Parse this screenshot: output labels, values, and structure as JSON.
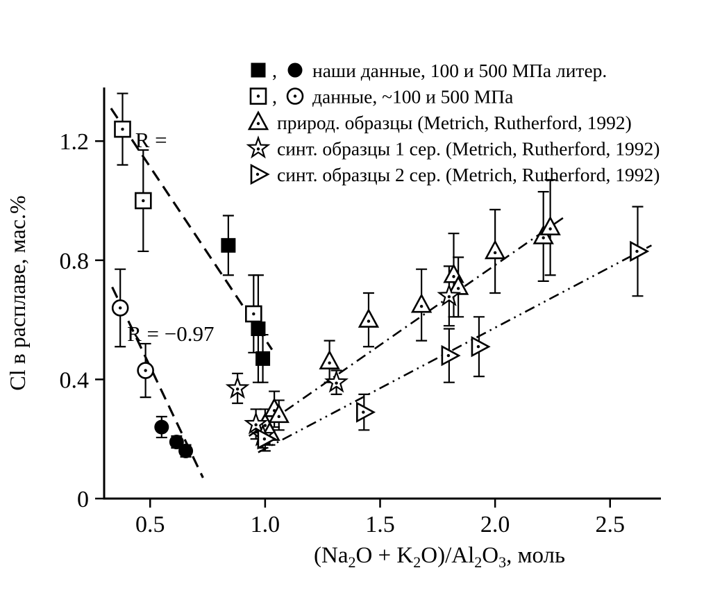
{
  "figure": {
    "background": "#ffffff",
    "ink_color": "#000000"
  },
  "chart_data": {
    "type": "scatter",
    "title": "",
    "xlabel_text": "(Na2O + K2O)/Al2O3, моль",
    "xlabel_parts": [
      {
        "text": "(Na"
      },
      {
        "text": "2",
        "sub": true
      },
      {
        "text": "O + K"
      },
      {
        "text": "2",
        "sub": true
      },
      {
        "text": "O)/Al"
      },
      {
        "text": "2",
        "sub": true
      },
      {
        "text": "O"
      },
      {
        "text": "3",
        "sub": true
      },
      {
        "text": ", моль"
      }
    ],
    "ylabel": "Cl в расплаве, мас.%",
    "xlim": [
      0.3,
      2.7
    ],
    "ylim": [
      0,
      1.38
    ],
    "grid": false,
    "x_ticks": [
      {
        "v": 0.5,
        "label": "0.5"
      },
      {
        "v": 1.0,
        "label": "1.0"
      },
      {
        "v": 1.5,
        "label": "1.5"
      },
      {
        "v": 2.0,
        "label": "2.0"
      },
      {
        "v": 2.5,
        "label": "2.5"
      }
    ],
    "y_ticks": [
      {
        "v": 0,
        "label": "0"
      },
      {
        "v": 0.4,
        "label": "0.4"
      },
      {
        "v": 0.8,
        "label": "0.8"
      },
      {
        "v": 1.2,
        "label": "1.2"
      }
    ],
    "series": [
      {
        "marker": "open_square",
        "points": [
          {
            "x": 0.38,
            "y": 1.24,
            "e": 0.12
          },
          {
            "x": 0.47,
            "y": 1.0,
            "e": 0.17
          },
          {
            "x": 0.95,
            "y": 0.62,
            "e": 0.13
          }
        ]
      },
      {
        "marker": "open_circle",
        "points": [
          {
            "x": 0.37,
            "y": 0.64,
            "e": 0.13
          },
          {
            "x": 0.48,
            "y": 0.43,
            "e": 0.09
          }
        ]
      },
      {
        "marker": "filled_square",
        "points": [
          {
            "x": 0.84,
            "y": 0.85,
            "e": 0.1
          },
          {
            "x": 0.97,
            "y": 0.57,
            "e": 0.18
          },
          {
            "x": 0.99,
            "y": 0.47,
            "e": 0.08
          }
        ]
      },
      {
        "marker": "filled_circle",
        "points": [
          {
            "x": 0.55,
            "y": 0.24,
            "e": 0.035
          },
          {
            "x": 0.615,
            "y": 0.19,
            "e": 0.02
          },
          {
            "x": 0.655,
            "y": 0.16,
            "e": 0.02
          }
        ]
      },
      {
        "marker": "triangle_up",
        "points": [
          {
            "x": 1.0,
            "y": 0.25,
            "e": 0.05
          },
          {
            "x": 1.02,
            "y": 0.22,
            "e": 0.04
          },
          {
            "x": 1.04,
            "y": 0.3,
            "e": 0.06
          },
          {
            "x": 1.06,
            "y": 0.28,
            "e": 0.05
          },
          {
            "x": 1.28,
            "y": 0.46,
            "e": 0.07
          },
          {
            "x": 1.45,
            "y": 0.6,
            "e": 0.09
          },
          {
            "x": 1.68,
            "y": 0.65,
            "e": 0.12
          },
          {
            "x": 1.82,
            "y": 0.75,
            "e": 0.14
          },
          {
            "x": 1.84,
            "y": 0.71,
            "e": 0.1
          },
          {
            "x": 2.0,
            "y": 0.83,
            "e": 0.14
          },
          {
            "x": 2.21,
            "y": 0.88,
            "e": 0.15
          },
          {
            "x": 2.24,
            "y": 0.91,
            "e": 0.16
          }
        ]
      },
      {
        "marker": "star",
        "points": [
          {
            "x": 0.88,
            "y": 0.37,
            "e": 0.05
          },
          {
            "x": 0.96,
            "y": 0.25,
            "e": 0.05
          },
          {
            "x": 0.99,
            "y": 0.21,
            "e": 0.04
          },
          {
            "x": 1.31,
            "y": 0.39,
            "e": 0.04
          },
          {
            "x": 1.8,
            "y": 0.68,
            "e": 0.1
          }
        ]
      },
      {
        "marker": "triangle_right",
        "points": [
          {
            "x": 1.0,
            "y": 0.2,
            "e": 0.04
          },
          {
            "x": 1.43,
            "y": 0.29,
            "e": 0.06
          },
          {
            "x": 1.8,
            "y": 0.48,
            "e": 0.09
          },
          {
            "x": 1.93,
            "y": 0.51,
            "e": 0.1
          },
          {
            "x": 2.62,
            "y": 0.83,
            "e": 0.15
          }
        ]
      }
    ],
    "trend_lines": [
      {
        "style": "dashed",
        "from": [
          0.33,
          1.31
        ],
        "to": [
          1.03,
          0.5
        ]
      },
      {
        "style": "dashed",
        "from": [
          0.335,
          0.71
        ],
        "to": [
          0.73,
          0.07
        ]
      },
      {
        "style": "dash-dot",
        "from": [
          0.93,
          0.21
        ],
        "to": [
          2.31,
          0.95
        ]
      },
      {
        "style": "dash-dot-dot",
        "from": [
          0.97,
          0.155
        ],
        "to": [
          2.68,
          0.85
        ]
      }
    ],
    "annotations": [
      {
        "text": "R =",
        "x": 0.435,
        "y": 1.205
      },
      {
        "text": "R = −0.97",
        "x": 0.4,
        "y": 0.555
      }
    ],
    "legend_position": "top-right-inside",
    "legend": [
      {
        "markers": [
          "filled_square",
          "filled_circle"
        ],
        "separator": ",",
        "label": "наши данные, 100 и 500 МПа литер."
      },
      {
        "markers": [
          "open_square",
          "open_circle"
        ],
        "separator": ",",
        "label": "данные, ~100 и 500 МПа"
      },
      {
        "markers": [
          "triangle_up"
        ],
        "label": "природ. образцы (Metrich, Rutherford, 1992)"
      },
      {
        "markers": [
          "star"
        ],
        "label": "синт. образцы 1 сер. (Metrich, Rutherford, 1992)"
      },
      {
        "markers": [
          "triangle_right"
        ],
        "label": "синт. образцы 2 сер. (Metrich, Rutherford, 1992)"
      }
    ]
  }
}
